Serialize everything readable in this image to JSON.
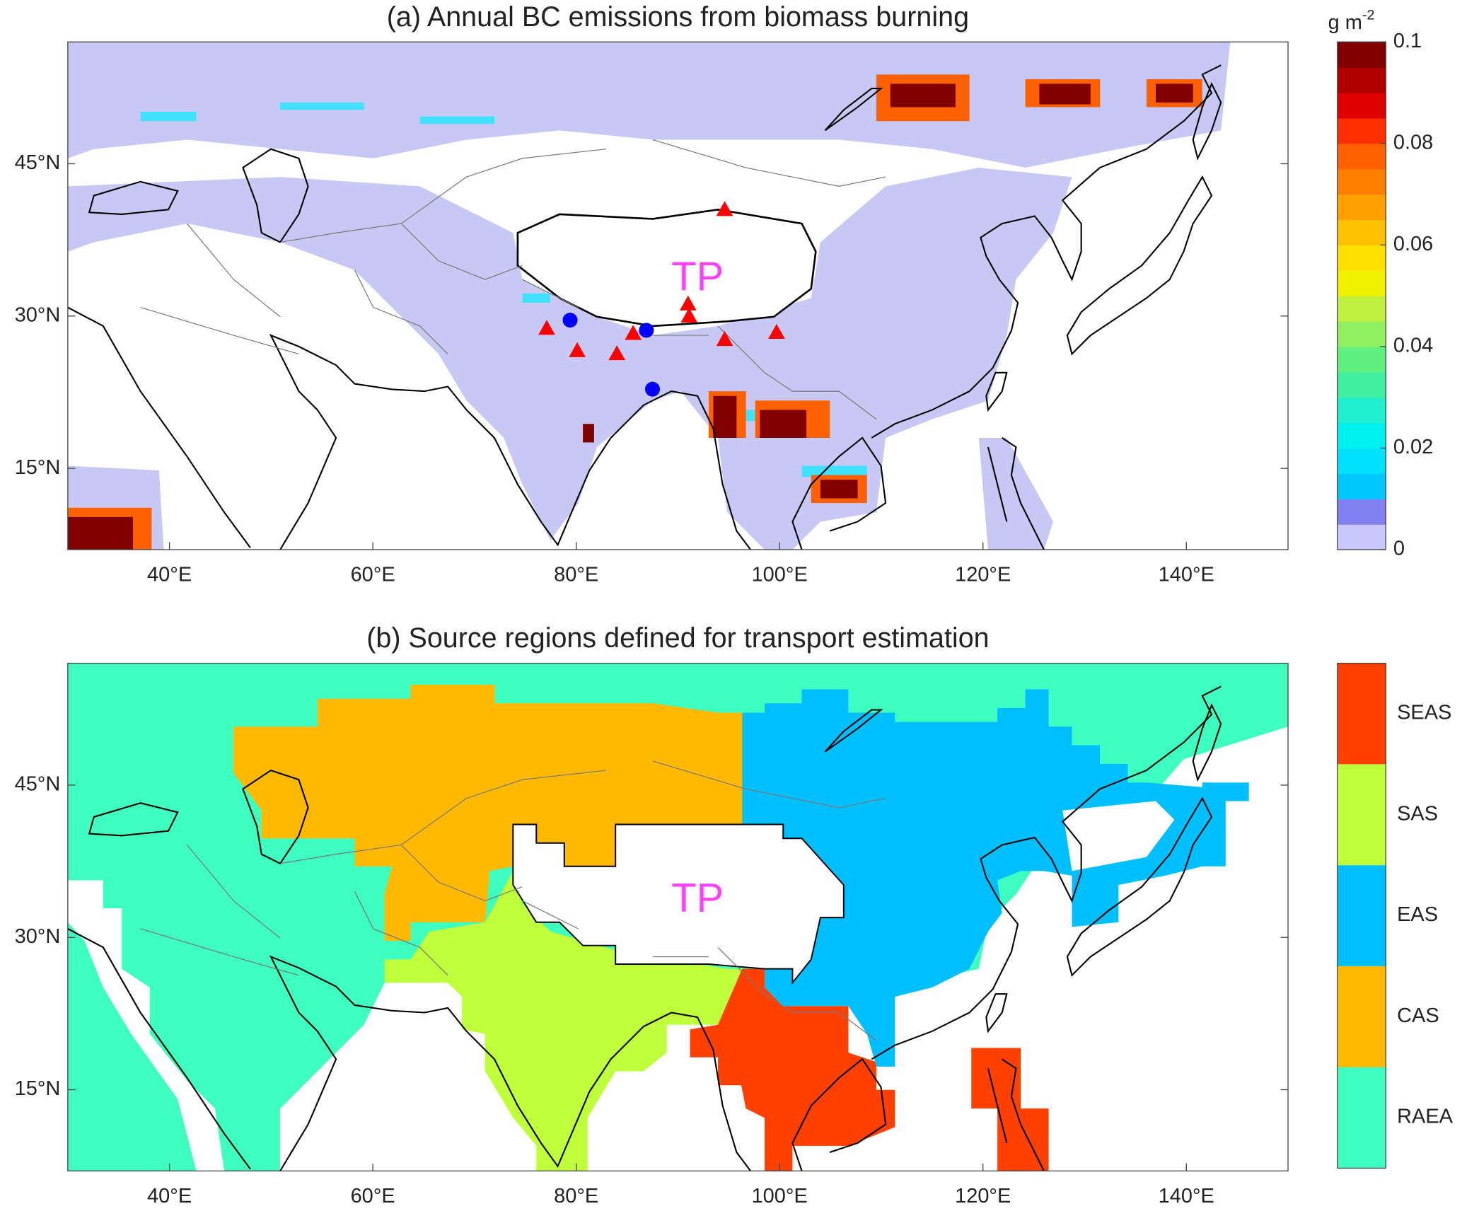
{
  "panel_a": {
    "title": "(a) Annual BC emissions from biomass burning",
    "region_label": "TP",
    "xlim": [
      30,
      150
    ],
    "ylim": [
      7,
      57
    ],
    "xticks": [
      {
        "value": 40,
        "label": "40°E"
      },
      {
        "value": 60,
        "label": "60°E"
      },
      {
        "value": 80,
        "label": "80°E"
      },
      {
        "value": 100,
        "label": "100°E"
      },
      {
        "value": 120,
        "label": "120°E"
      },
      {
        "value": 140,
        "label": "140°E"
      }
    ],
    "yticks": [
      {
        "value": 15,
        "label": "15°N"
      },
      {
        "value": 30,
        "label": "30°N"
      },
      {
        "value": 45,
        "label": "45°N"
      }
    ],
    "sites": [
      {
        "marker": "triangle",
        "color": "#ff0000",
        "lon": [
          77.1,
          80.1,
          84.0,
          85.6,
          91.0,
          91.1,
          94.6,
          99.7,
          94.6
        ],
        "lat": [
          28.8,
          26.6,
          26.3,
          28.3,
          31.2,
          30.0,
          27.7,
          28.4,
          40.5
        ]
      },
      {
        "marker": "circle",
        "color": "#0000ff",
        "lon": [
          79.4,
          86.9,
          87.5
        ],
        "lat": [
          29.6,
          28.6,
          22.8
        ]
      }
    ],
    "colorbar": {
      "unit": "g m",
      "unit_exponent": "-2",
      "lim": [
        0,
        0.1
      ],
      "ticks": [
        0,
        0.02,
        0.04,
        0.06,
        0.08,
        0.1
      ],
      "colors": [
        "#c8c8ff",
        "#8080f0",
        "#00c8ff",
        "#00e0ff",
        "#00f0f0",
        "#20f0d0",
        "#40f0a0",
        "#60f080",
        "#90f060",
        "#c0f040",
        "#f0f000",
        "#ffe000",
        "#ffc000",
        "#ffa000",
        "#ff8000",
        "#ff6000",
        "#ff3000",
        "#e00000",
        "#b00000",
        "#800000"
      ]
    }
  },
  "panel_b": {
    "title": "(b) Source regions defined for transport estimation",
    "region_label": "TP",
    "xlim": [
      30,
      150
    ],
    "ylim": [
      7,
      57
    ],
    "xticks": [
      {
        "value": 40,
        "label": "40°E"
      },
      {
        "value": 60,
        "label": "60°E"
      },
      {
        "value": 80,
        "label": "80°E"
      },
      {
        "value": 100,
        "label": "100°E"
      },
      {
        "value": 120,
        "label": "120°E"
      },
      {
        "value": 140,
        "label": "140°E"
      }
    ],
    "yticks": [
      {
        "value": 15,
        "label": "15°N"
      },
      {
        "value": 30,
        "label": "30°N"
      },
      {
        "value": 45,
        "label": "45°N"
      }
    ],
    "colorbar": {
      "categories": [
        "RAEA",
        "CAS",
        "EAS",
        "SAS",
        "SEAS"
      ],
      "colors": [
        "#3effc0",
        "#ffb900",
        "#00bfff",
        "#bfff3c",
        "#ff4000"
      ]
    }
  }
}
